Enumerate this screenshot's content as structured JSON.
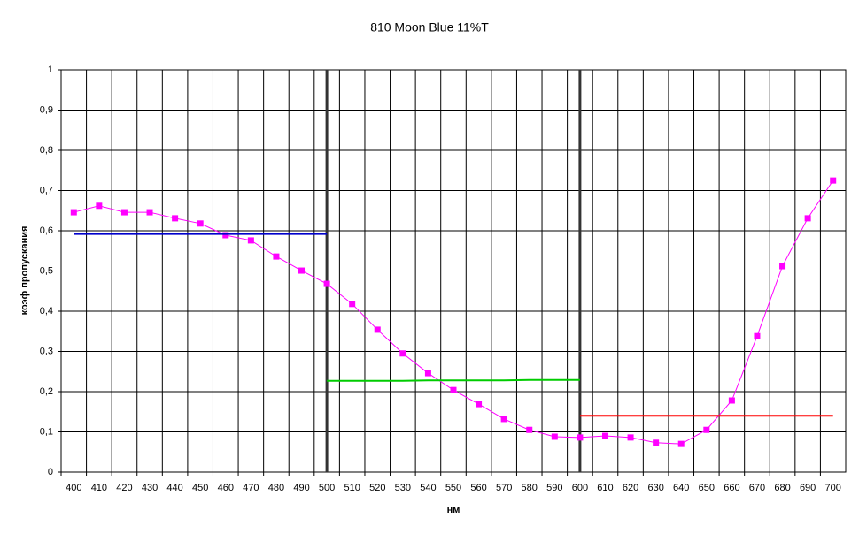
{
  "chart_data": {
    "type": "line",
    "title": "810 Moon Blue 11%T",
    "x_label": "нм",
    "y_label": "коэф пропускания",
    "categories": [
      "400",
      "410",
      "420",
      "430",
      "440",
      "450",
      "460",
      "470",
      "480",
      "490",
      "500",
      "510",
      "520",
      "530",
      "540",
      "550",
      "560",
      "570",
      "580",
      "590",
      "600",
      "610",
      "620",
      "630",
      "640",
      "650",
      "660",
      "670",
      "680",
      "690",
      "700"
    ],
    "series": [
      {
        "color": "#ff00ff",
        "markers": true,
        "values": [
          0.646,
          0.662,
          0.646,
          0.646,
          0.631,
          0.618,
          0.589,
          0.576,
          0.536,
          0.501,
          0.468,
          0.418,
          0.354,
          0.295,
          0.246,
          0.204,
          0.169,
          0.132,
          0.105,
          0.088,
          0.086,
          0.09,
          0.086,
          0.073,
          0.07,
          0.105,
          0.178,
          0.338,
          0.512,
          0.631,
          0.725
        ]
      },
      {
        "color": "#0000cc",
        "markers": false,
        "values": [
          0.592,
          0.592,
          0.592,
          0.592,
          0.592,
          0.592,
          0.592,
          0.592,
          0.592,
          0.592,
          0.592,
          null,
          null,
          null,
          null,
          null,
          null,
          null,
          null,
          null,
          null,
          null,
          null,
          null,
          null,
          null,
          null,
          null,
          null,
          null,
          null
        ]
      },
      {
        "color": "#00cc00",
        "markers": false,
        "values": [
          null,
          null,
          null,
          null,
          null,
          null,
          null,
          null,
          null,
          null,
          0.227,
          0.227,
          0.227,
          0.227,
          0.228,
          0.228,
          0.228,
          0.228,
          0.229,
          0.229,
          0.229,
          null,
          null,
          null,
          null,
          null,
          null,
          null,
          null,
          null,
          null
        ]
      },
      {
        "color": "#ff0000",
        "markers": false,
        "values": [
          null,
          null,
          null,
          null,
          null,
          null,
          null,
          null,
          null,
          null,
          null,
          null,
          null,
          null,
          null,
          null,
          null,
          null,
          null,
          null,
          0.14,
          0.14,
          0.14,
          0.14,
          0.14,
          0.14,
          0.14,
          0.14,
          0.14,
          0.14,
          0.14
        ]
      }
    ],
    "dividers": [
      "500",
      "600"
    ],
    "ylim": [
      0,
      1
    ],
    "yticks": [
      0,
      {
        "value": 0.1,
        "label": "0,1"
      },
      {
        "value": 0.2,
        "label": "0,2"
      },
      {
        "value": 0.3,
        "label": "0,3"
      },
      {
        "value": 0.4,
        "label": "0,4"
      },
      {
        "value": 0.5,
        "label": "0,5"
      },
      {
        "value": 0.6,
        "label": "0,6"
      },
      {
        "value": 0.7,
        "label": "0,7"
      },
      {
        "value": 0.8,
        "label": "0,8"
      },
      {
        "value": 0.9,
        "label": "0,9"
      },
      1
    ],
    "grid": true
  }
}
